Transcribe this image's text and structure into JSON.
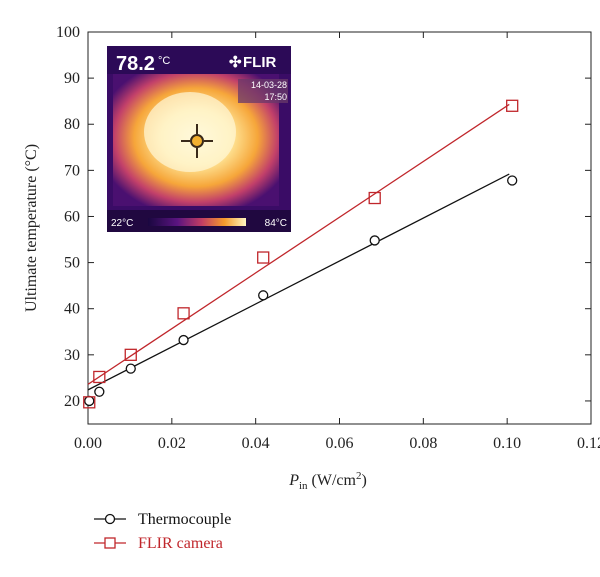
{
  "chart_data": {
    "type": "scatter",
    "xlabel": {
      "main": "P",
      "sub": "in",
      "unit_pre": " (W/cm",
      "unit_sup": "2",
      "unit_post": ")"
    },
    "ylabel": "Ultimate temperature (°C)",
    "xlim": [
      0,
      0.12
    ],
    "ylim": [
      15,
      100
    ],
    "xticks": [
      "0.00",
      "0.02",
      "0.04",
      "0.06",
      "0.08",
      "0.10",
      "0.12"
    ],
    "yticks": [
      "20",
      "30",
      "40",
      "50",
      "60",
      "70",
      "80",
      "90",
      "100"
    ],
    "grid": false,
    "legend_position": "bottom-left",
    "series": [
      {
        "name": "Thermocouple",
        "color": "#111111",
        "marker": "circle",
        "points": [
          [
            0.0003,
            20.0
          ],
          [
            0.0027,
            22.0
          ],
          [
            0.0102,
            27.0
          ],
          [
            0.0228,
            33.2
          ],
          [
            0.0418,
            42.9
          ],
          [
            0.0684,
            54.8
          ],
          [
            0.1012,
            67.8
          ]
        ],
        "fit": [
          [
            0.0,
            22.4
          ],
          [
            0.1005,
            69.2
          ]
        ]
      },
      {
        "name": "FLIR camera",
        "color": "#c0262b",
        "marker": "square",
        "points": [
          [
            0.0003,
            19.7
          ],
          [
            0.0027,
            25.2
          ],
          [
            0.0102,
            30.0
          ],
          [
            0.0228,
            39.0
          ],
          [
            0.0418,
            51.1
          ],
          [
            0.0684,
            64.0
          ],
          [
            0.1012,
            84.0
          ]
        ],
        "fit": [
          [
            0.0,
            23.6
          ],
          [
            0.1005,
            84.3
          ]
        ]
      }
    ]
  },
  "inset": {
    "temperature": "78.2",
    "temperature_unit": "°C",
    "brand": "FLIR",
    "date": "14-03-28",
    "time": "17:50",
    "scale_min": "22°C",
    "scale_max": "84°C",
    "colors": [
      "#0b0428",
      "#3d0a6b",
      "#8a1e86",
      "#d24d4d",
      "#f6a02a",
      "#fff2a8"
    ]
  }
}
